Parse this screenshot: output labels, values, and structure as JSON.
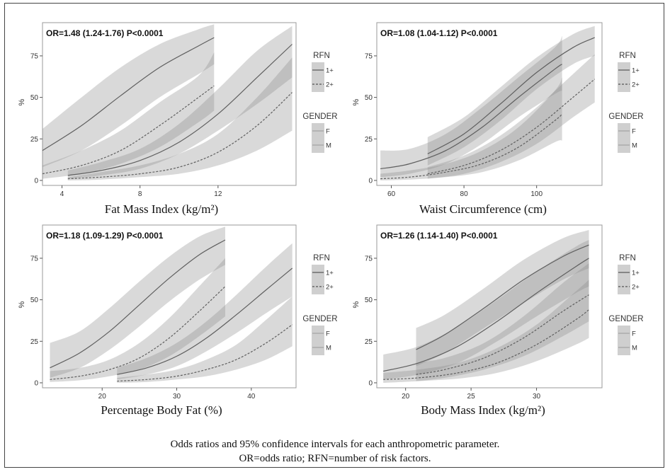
{
  "caption": {
    "line1": "Odds ratios and 95% confidence intervals for each anthropometric parameter.",
    "line2": "OR=odds ratio; RFN=number of risk factors."
  },
  "legend": {
    "rfn_title": "RFN",
    "rfn_items": [
      "1+",
      "2+"
    ],
    "gender_title": "GENDER",
    "gender_items": [
      "F",
      "M"
    ]
  },
  "chart_data": [
    {
      "type": "line",
      "annotation": "OR=1.48 (1.24-1.76) P<0.0001",
      "xlabel": "Fat Mass Index (kg/m²)",
      "ylabel": "%",
      "xlim": [
        3,
        16
      ],
      "ylim": [
        -3,
        95
      ],
      "xticks": [
        4,
        8,
        12
      ],
      "yticks": [
        0,
        25,
        50,
        75
      ],
      "grid": false,
      "legend": "right",
      "series": [
        {
          "rfn": "1+",
          "gender": "F",
          "x": [
            3,
            5,
            7,
            9,
            11,
            11.8
          ],
          "y": [
            18,
            33,
            51,
            68,
            81,
            86
          ],
          "lower": [
            8,
            18,
            33,
            50,
            64,
            70
          ],
          "upper": [
            31,
            50,
            68,
            82,
            91,
            94
          ]
        },
        {
          "rfn": "2+",
          "gender": "F",
          "x": [
            3,
            5,
            7,
            9,
            11,
            11.8
          ],
          "y": [
            4,
            9,
            18,
            33,
            50,
            57
          ],
          "lower": [
            1,
            4,
            10,
            20,
            35,
            42
          ],
          "upper": [
            9,
            18,
            30,
            47,
            63,
            77
          ]
        },
        {
          "rfn": "1+",
          "gender": "M",
          "x": [
            4.3,
            6,
            8,
            10,
            12,
            14,
            15.8
          ],
          "y": [
            3,
            6,
            12,
            23,
            40,
            62,
            82
          ],
          "lower": [
            1,
            3,
            7,
            16,
            30,
            46,
            62
          ],
          "upper": [
            6,
            11,
            19,
            34,
            55,
            78,
            93
          ]
        },
        {
          "rfn": "2+",
          "gender": "M",
          "x": [
            4.3,
            6,
            8,
            10,
            12,
            14,
            15.8
          ],
          "y": [
            1,
            2,
            4,
            8,
            17,
            33,
            53
          ],
          "lower": [
            0,
            0.5,
            2,
            4,
            9,
            18,
            30
          ],
          "upper": [
            2,
            5,
            9,
            16,
            28,
            50,
            74
          ]
        }
      ]
    },
    {
      "type": "line",
      "annotation": "OR=1.08 (1.04-1.12) P<0.0001",
      "xlabel": "Waist Circumference (cm)",
      "ylabel": "%",
      "xlim": [
        56,
        118
      ],
      "ylim": [
        -3,
        95
      ],
      "xticks": [
        60,
        80,
        100
      ],
      "yticks": [
        0,
        25,
        50,
        75
      ],
      "grid": false,
      "legend": "right",
      "series": [
        {
          "rfn": "1+",
          "gender": "F",
          "x": [
            57,
            65,
            75,
            85,
            95,
            105,
            107
          ],
          "y": [
            7,
            10,
            18,
            32,
            50,
            67,
            70
          ],
          "lower": [
            2,
            4,
            10,
            22,
            38,
            52,
            54
          ],
          "upper": [
            18,
            19,
            28,
            44,
            62,
            80,
            87
          ]
        },
        {
          "rfn": "2+",
          "gender": "F",
          "x": [
            57,
            65,
            75,
            85,
            95,
            105,
            107
          ],
          "y": [
            1,
            2,
            5,
            10,
            20,
            36,
            40
          ],
          "lower": [
            0,
            0.5,
            2,
            5,
            12,
            23,
            24
          ],
          "upper": [
            4,
            6,
            10,
            18,
            32,
            54,
            62
          ]
        },
        {
          "rfn": "1+",
          "gender": "M",
          "x": [
            70,
            80,
            90,
            100,
            110,
            116
          ],
          "y": [
            16,
            28,
            46,
            65,
            80,
            86
          ],
          "lower": [
            9,
            20,
            36,
            55,
            70,
            75
          ],
          "upper": [
            26,
            38,
            56,
            74,
            88,
            93
          ]
        },
        {
          "rfn": "2+",
          "gender": "M",
          "x": [
            70,
            80,
            90,
            100,
            110,
            116
          ],
          "y": [
            4,
            9,
            18,
            32,
            50,
            61
          ],
          "lower": [
            1,
            4,
            11,
            22,
            38,
            47
          ],
          "upper": [
            8,
            15,
            27,
            44,
            64,
            76
          ]
        }
      ]
    },
    {
      "type": "line",
      "annotation": "OR=1.18 (1.09-1.29) P<0.0001",
      "xlabel": "Percentage Body Fat (%)",
      "ylabel": "%",
      "xlim": [
        12,
        46
      ],
      "ylim": [
        -3,
        95
      ],
      "xticks": [
        20,
        30,
        40
      ],
      "yticks": [
        0,
        25,
        50,
        75
      ],
      "grid": false,
      "legend": "right",
      "series": [
        {
          "rfn": "1+",
          "gender": "F",
          "x": [
            13,
            17,
            21,
            25,
            29,
            33,
            36.5
          ],
          "y": [
            9,
            18,
            31,
            47,
            63,
            77,
            86
          ],
          "lower": [
            3,
            9,
            20,
            34,
            49,
            62,
            71
          ],
          "upper": [
            24,
            31,
            45,
            61,
            76,
            88,
            94
          ]
        },
        {
          "rfn": "2+",
          "gender": "F",
          "x": [
            13,
            17,
            21,
            25,
            29,
            33,
            36.5
          ],
          "y": [
            2,
            4,
            8,
            15,
            27,
            43,
            58
          ],
          "lower": [
            0.5,
            1.5,
            4,
            8,
            16,
            28,
            40
          ],
          "upper": [
            7,
            9,
            14,
            24,
            39,
            58,
            75
          ]
        },
        {
          "rfn": "1+",
          "gender": "M",
          "x": [
            22,
            26,
            30,
            34,
            38,
            42,
            45.5
          ],
          "y": [
            5,
            9,
            16,
            27,
            41,
            56,
            69
          ],
          "lower": [
            2,
            5,
            10,
            19,
            30,
            42,
            52
          ],
          "upper": [
            9,
            15,
            24,
            37,
            53,
            70,
            84
          ]
        },
        {
          "rfn": "2+",
          "gender": "M",
          "x": [
            22,
            26,
            30,
            34,
            38,
            42,
            45.5
          ],
          "y": [
            1,
            2,
            4,
            8,
            14,
            24,
            35
          ],
          "lower": [
            0,
            0.5,
            2,
            4,
            8,
            14,
            22
          ],
          "upper": [
            3,
            5,
            8,
            14,
            23,
            38,
            52
          ]
        }
      ]
    },
    {
      "type": "line",
      "annotation": "OR=1.26 (1.14-1.40) P<0.0001",
      "xlabel": "Body Mass Index (kg/m²)",
      "ylabel": "%",
      "xlim": [
        17.8,
        35
      ],
      "ylim": [
        -3,
        95
      ],
      "xticks": [
        20,
        25,
        30
      ],
      "yticks": [
        0,
        25,
        50,
        75
      ],
      "grid": false,
      "legend": "right",
      "series": [
        {
          "rfn": "1+",
          "gender": "F",
          "x": [
            18.3,
            21,
            24,
            27,
            30,
            33,
            34
          ],
          "y": [
            7,
            12,
            22,
            37,
            54,
            70,
            75
          ],
          "lower": [
            2,
            5,
            12,
            25,
            40,
            54,
            58
          ],
          "upper": [
            17,
            22,
            34,
            50,
            67,
            82,
            86
          ]
        },
        {
          "rfn": "2+",
          "gender": "F",
          "x": [
            18.3,
            21,
            24,
            27,
            30,
            33,
            34
          ],
          "y": [
            2,
            3,
            6,
            12,
            23,
            38,
            44
          ],
          "lower": [
            0,
            1,
            2.5,
            6,
            13,
            23,
            27
          ],
          "upper": [
            6,
            8,
            12,
            21,
            35,
            55,
            62
          ]
        },
        {
          "rfn": "1+",
          "gender": "M",
          "x": [
            20.8,
            23,
            26,
            29,
            32,
            34
          ],
          "y": [
            20,
            29,
            45,
            62,
            76,
            83
          ],
          "lower": [
            10,
            18,
            33,
            48,
            62,
            69
          ],
          "upper": [
            33,
            41,
            57,
            74,
            87,
            92
          ]
        },
        {
          "rfn": "2+",
          "gender": "M",
          "x": [
            20.8,
            23,
            26,
            29,
            32,
            34
          ],
          "y": [
            5,
            8,
            15,
            27,
            43,
            53
          ],
          "lower": [
            1,
            3,
            8,
            16,
            28,
            37
          ],
          "upper": [
            12,
            15,
            24,
            40,
            60,
            72
          ]
        }
      ]
    }
  ]
}
